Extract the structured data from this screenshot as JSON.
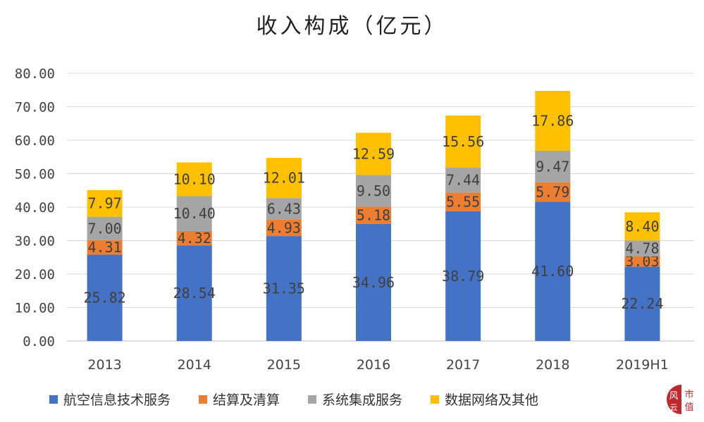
{
  "chart_data": {
    "type": "bar",
    "stacked": true,
    "title": "收入构成（亿元）",
    "xlabel": "",
    "ylabel": "",
    "ylim": [
      0,
      80
    ],
    "yticks": [
      "0.00",
      "10.00",
      "20.00",
      "30.00",
      "40.00",
      "50.00",
      "60.00",
      "70.00",
      "80.00"
    ],
    "grid": true,
    "legend_position": "bottom",
    "categories": [
      "2013",
      "2014",
      "2015",
      "2016",
      "2017",
      "2018",
      "2019H1"
    ],
    "series": [
      {
        "name": "航空信息技术服务",
        "color": "#4472C4",
        "values": [
          25.82,
          28.54,
          31.35,
          34.96,
          38.79,
          41.6,
          22.24
        ],
        "labels": [
          "25.82",
          "28.54",
          "31.35",
          "34.96",
          "38.79",
          "41.60",
          "22.24"
        ]
      },
      {
        "name": "结算及清算",
        "color": "#ED7D31",
        "values": [
          4.31,
          4.32,
          4.93,
          5.18,
          5.55,
          5.79,
          3.03
        ],
        "labels": [
          "4.31",
          "4.32",
          "4.93",
          "5.18",
          "5.55",
          "5.79",
          "3.03"
        ]
      },
      {
        "name": "系统集成服务",
        "color": "#A5A5A5",
        "values": [
          7.0,
          10.4,
          6.43,
          9.5,
          7.44,
          9.47,
          4.78
        ],
        "labels": [
          "7.00",
          "10.40",
          "6.43",
          "9.50",
          "7.44",
          "9.47",
          "4.78"
        ]
      },
      {
        "name": "数据网络及其他",
        "color": "#FFC000",
        "values": [
          7.97,
          10.1,
          12.01,
          12.59,
          15.56,
          17.86,
          8.4
        ],
        "labels": [
          "7.97",
          "10.10",
          "12.01",
          "12.59",
          "15.56",
          "17.86",
          "8.40"
        ]
      }
    ]
  },
  "logo": {
    "text": "风 市值",
    "color": "#C0282D"
  }
}
